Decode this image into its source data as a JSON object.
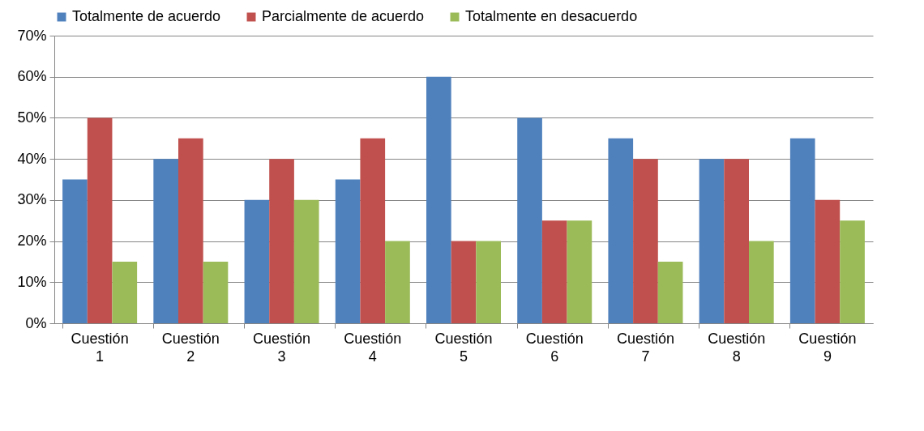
{
  "chart_data": {
    "type": "bar",
    "categories": [
      "Cuestión 1",
      "Cuestión 2",
      "Cuestión 3",
      "Cuestión 4",
      "Cuestión 5",
      "Cuestión 6",
      "Cuestión 7",
      "Cuestión 8",
      "Cuestión 9"
    ],
    "series": [
      {
        "name": "Totalmente de acuerdo",
        "color": "#4f81bd",
        "values": [
          35,
          40,
          30,
          35,
          60,
          50,
          45,
          40,
          45
        ]
      },
      {
        "name": "Parcialmente de acuerdo",
        "color": "#c0504d",
        "values": [
          50,
          45,
          40,
          45,
          20,
          25,
          40,
          40,
          30
        ]
      },
      {
        "name": "Totalmente en desacuerdo",
        "color": "#9bbb59",
        "values": [
          15,
          15,
          30,
          20,
          20,
          25,
          15,
          20,
          25
        ]
      }
    ],
    "ylim": [
      0,
      70
    ],
    "yticks": [
      {
        "value": 0,
        "label": "0%"
      },
      {
        "value": 10,
        "label": "10%"
      },
      {
        "value": 20,
        "label": "20%"
      },
      {
        "value": 30,
        "label": "30%"
      },
      {
        "value": 40,
        "label": "40%"
      },
      {
        "value": 50,
        "label": "50%"
      },
      {
        "value": 60,
        "label": "60%"
      },
      {
        "value": 70,
        "label": "70%"
      }
    ],
    "grid": "y",
    "legend": "top"
  }
}
